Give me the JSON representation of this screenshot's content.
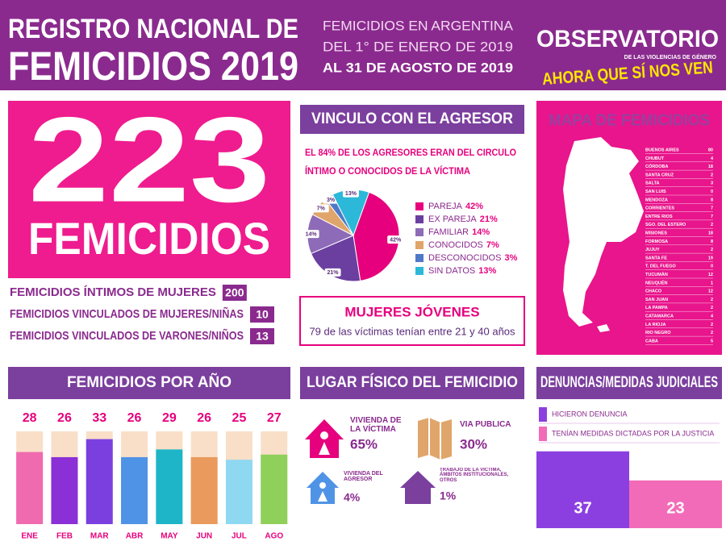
{
  "header": {
    "title_line1": "REGISTRO NACIONAL DE",
    "title_line2": "FEMICIDIOS 2019",
    "period_line1": "FEMICIDIOS EN ARGENTINA",
    "period_line2": "DEL 1° DE ENERO DE 2019",
    "period_line3": "AL 31 DE AGOSTO DE 2019",
    "logo_main": "OBSERVATORIO",
    "logo_sub": "DE LAS VIOLENCIAS DE GÉNERO",
    "logo_tagline": "AHORA QUE SÍ NOS VEN"
  },
  "total": {
    "value": 223,
    "label": "FEMICIDIOS"
  },
  "breakdown": [
    {
      "label": "FEMICIDIOS ÍNTIMOS DE MUJERES",
      "value": 200
    },
    {
      "label": "FEMICIDIOS VINCULADOS DE MUJERES/NIÑAS",
      "value": 10
    },
    {
      "label": "FEMICIDIOS VINCULADOS DE VARONES/NIÑOS",
      "value": 13
    }
  ],
  "young_women": {
    "title": "MUJERES JÓVENES",
    "text": "79 de las víctimas tenían entre 21 y 40 años"
  },
  "map": {
    "title": "MAPA DE FEMICIDIOS",
    "provinces": [
      {
        "name": "BUENOS AIRES",
        "value": 80
      },
      {
        "name": "CHUBUT",
        "value": 4
      },
      {
        "name": "CÓRDOBA",
        "value": 18
      },
      {
        "name": "SANTA CRUZ",
        "value": 2
      },
      {
        "name": "SALTA",
        "value": 3
      },
      {
        "name": "SAN LUIS",
        "value": 0
      },
      {
        "name": "MENDOZA",
        "value": 8
      },
      {
        "name": "CORRIENTES",
        "value": 7
      },
      {
        "name": "ENTRE RIOS",
        "value": 7
      },
      {
        "name": "SGO. DEL ESTERO",
        "value": 2
      },
      {
        "name": "MISIONES",
        "value": 18
      },
      {
        "name": "FORMOSA",
        "value": 8
      },
      {
        "name": "JUJUY",
        "value": 2
      },
      {
        "name": "SANTA FE",
        "value": 19
      },
      {
        "name": "T. DEL FUEGO",
        "value": 0
      },
      {
        "name": "TUCUMÁN",
        "value": 12
      },
      {
        "name": "NEUQUÉN",
        "value": 1
      },
      {
        "name": "CHACO",
        "value": 12
      },
      {
        "name": "SAN JUAN",
        "value": 2
      },
      {
        "name": "LA PAMPA",
        "value": 2
      },
      {
        "name": "CATAMARCA",
        "value": 4
      },
      {
        "name": "LA RIOJA",
        "value": 2
      },
      {
        "name": "RIO NEGRO",
        "value": 2
      },
      {
        "name": "CABA",
        "value": 5
      }
    ]
  },
  "chart_data": [
    {
      "type": "pie",
      "title": "VINCULO CON EL AGRESOR",
      "subtitle_line1": "EL 84% DE LOS AGRESORES ERAN DEL CIRCULO",
      "subtitle_line2": "ÍNTIMO O CONOCIDOS DE LA VÍCTIMA",
      "categories": [
        "PAREJA",
        "EX PAREJA",
        "FAMILIAR",
        "CONOCIDOS",
        "DESCONOCIDOS",
        "SIN DATOS"
      ],
      "values": [
        42,
        21,
        14,
        7,
        3,
        13
      ],
      "value_labels": [
        "42%",
        "21%",
        "14%",
        "7%",
        "3%",
        "13%"
      ],
      "colors": [
        "#e6007e",
        "#6b3fa0",
        "#8e6bb8",
        "#e0a56a",
        "#4f79c7",
        "#2cb8d8"
      ]
    },
    {
      "type": "bar",
      "title": "FEMICIDIOS POR AÑO",
      "categories": [
        "ENE",
        "FEB",
        "MAR",
        "ABR",
        "MAY",
        "JUN",
        "JUL",
        "AGO"
      ],
      "values": [
        28,
        26,
        33,
        26,
        29,
        26,
        25,
        27
      ],
      "colors": [
        "#f06ab0",
        "#8b2fd6",
        "#7b3fe0",
        "#4f93e6",
        "#1fb5c8",
        "#e99a5c",
        "#8fd8f2",
        "#8fd05a"
      ],
      "ylim": [
        0,
        36
      ]
    },
    {
      "type": "pictogram",
      "title": "LUGAR FÍSICO DEL FEMICIDIO",
      "categories": [
        "VIVIENDA DE LA VÍCTIMA",
        "VIA PÚBLICA",
        "VIVIENDA DEL AGRESOR",
        "TRABAJO DE LA VÍCTIMA, ÁMBITOS INSTITUCIONALES, OTROS"
      ],
      "values": [
        65,
        30,
        4,
        1
      ],
      "value_labels": [
        "65%",
        "30%",
        "4%",
        "1%"
      ],
      "colors": [
        "#e6007e",
        "#e0a56a",
        "#4f93e6",
        "#7b3f9e"
      ]
    },
    {
      "type": "bar",
      "title": "DENUNCIAS/MEDIDAS JUDICIALES",
      "categories": [
        "HICIERON DENUNCIA",
        "TENÍAN MEDIDAS DICTADAS POR LA JUSTICIA"
      ],
      "values": [
        37,
        23
      ],
      "colors": [
        "#8b3fe0",
        "#f26bb8"
      ],
      "ylim": [
        0,
        40
      ]
    }
  ]
}
